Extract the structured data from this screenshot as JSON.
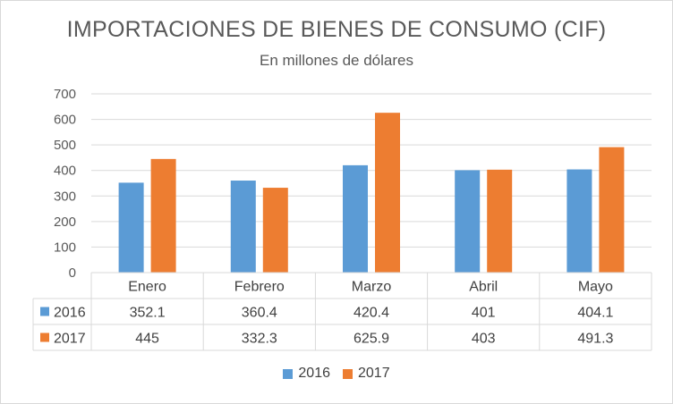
{
  "title": "IMPORTACIONES DE BIENES DE CONSUMO (CIF)",
  "subtitle": "En millones de dólares",
  "chart_data": {
    "type": "bar",
    "title": "IMPORTACIONES DE BIENES DE CONSUMO (CIF)",
    "subtitle": "En millones de dólares",
    "categories": [
      "Enero",
      "Febrero",
      "Marzo",
      "Abril",
      "Mayo"
    ],
    "series": [
      {
        "name": "2016",
        "color": "#5b9bd5",
        "values": [
          352.1,
          360.4,
          420.4,
          401,
          404.1
        ],
        "labels": [
          "352.1",
          "360.4",
          "420.4",
          "401",
          "404.1"
        ]
      },
      {
        "name": "2017",
        "color": "#ed7d31",
        "values": [
          445,
          332.3,
          625.9,
          403,
          491.3
        ],
        "labels": [
          "445",
          "332.3",
          "625.9",
          "403",
          "491.3"
        ]
      }
    ],
    "yticks": [
      "0",
      "100",
      "200",
      "300",
      "400",
      "500",
      "600",
      "700"
    ],
    "ylim": [
      0,
      700
    ],
    "grid": true,
    "data_table": true,
    "legend": "bottom"
  }
}
